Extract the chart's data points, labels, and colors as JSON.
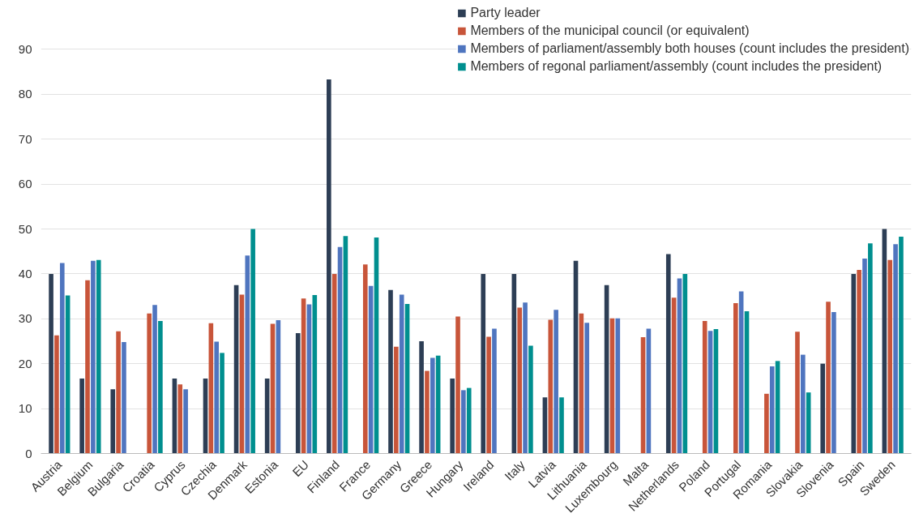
{
  "chart_data": {
    "type": "bar",
    "categories": [
      "Austria",
      "Belgium",
      "Bulgaria",
      "Croatia",
      "Cyprus",
      "Czechia",
      "Denmark",
      "Estonia",
      "EU",
      "Finland",
      "France",
      "Germany",
      "Greece",
      "Hungary",
      "Ireland",
      "Italy",
      "Latvia",
      "Lithuania",
      "Luxembourg",
      "Malta",
      "Netherlands",
      "Poland",
      "Portugal",
      "Romania",
      "Slovakia",
      "Slovenia",
      "Spain",
      "Sweden"
    ],
    "series": [
      {
        "name": "Party leader",
        "color": "#2d3e55",
        "values": [
          40,
          16.7,
          14.3,
          null,
          16.7,
          16.7,
          37.5,
          16.7,
          26.8,
          83.3,
          null,
          36.4,
          25,
          16.7,
          40,
          40,
          12.5,
          42.9,
          37.5,
          null,
          44.4,
          null,
          null,
          null,
          null,
          20,
          40,
          50
        ]
      },
      {
        "name": "Members of the municipal council (or equivalent)",
        "color": "#c8553a",
        "values": [
          26.3,
          38.6,
          27.2,
          31.2,
          15.4,
          29,
          35.4,
          28.9,
          34.5,
          40,
          42.1,
          23.8,
          18.4,
          30.5,
          26,
          32.5,
          29.8,
          31.2,
          30.1,
          25.9,
          34.7,
          29.5,
          33.5,
          13.3,
          27.1,
          33.8,
          40.9,
          43.1
        ]
      },
      {
        "name": "Members of parliament/assembly both houses (count includes the president)",
        "color": "#4f75bf",
        "values": [
          42.4,
          42.9,
          24.8,
          33.1,
          14.3,
          24.9,
          44.1,
          29.7,
          33.2,
          46,
          37.3,
          35.4,
          21.3,
          14.1,
          27.8,
          33.6,
          32,
          29.1,
          30.1,
          27.8,
          39,
          27.3,
          36.1,
          19.4,
          22,
          31.5,
          43.4,
          46.6
        ]
      },
      {
        "name": "Members of regonal parliament/assembly (count includes the president)",
        "color": "#008f8f",
        "values": [
          35.2,
          43.1,
          null,
          29.5,
          null,
          22.4,
          50,
          null,
          35.3,
          48.4,
          48.1,
          33.3,
          21.8,
          14.6,
          null,
          24,
          12.5,
          null,
          null,
          null,
          40,
          27.7,
          31.7,
          20.6,
          13.6,
          null,
          46.8,
          48.3
        ]
      }
    ],
    "ylim": [
      0,
      100
    ],
    "yticks": [
      0,
      10,
      20,
      30,
      40,
      50,
      60,
      70,
      80,
      90
    ],
    "grid": "y",
    "legend": "top right"
  }
}
